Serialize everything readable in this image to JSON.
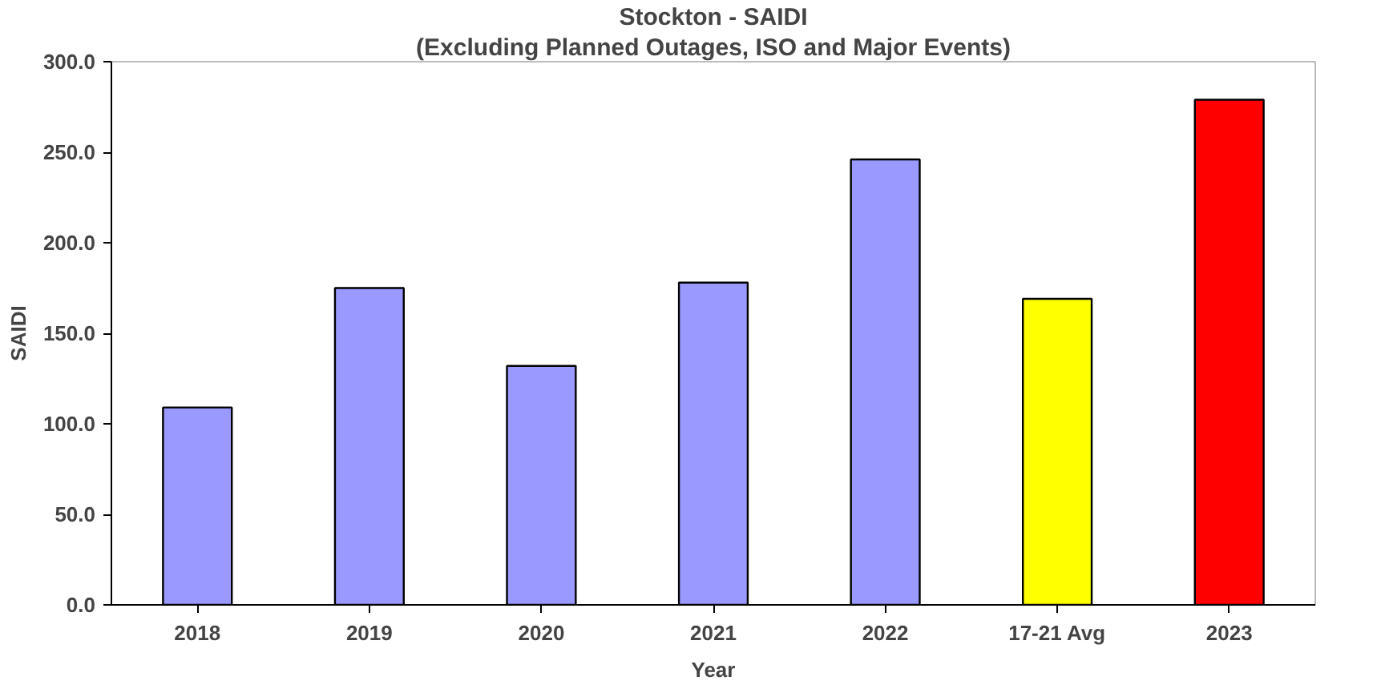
{
  "chart_data": {
    "type": "bar",
    "title": "Stockton - SAIDI",
    "subtitle": "(Excluding Planned Outages, ISO and Major Events)",
    "xlabel": "Year",
    "ylabel": "SAIDI",
    "categories": [
      "2018",
      "2019",
      "2020",
      "2021",
      "2022",
      "17-21 Avg",
      "2023"
    ],
    "values": [
      109,
      175,
      132,
      178,
      246,
      169,
      279
    ],
    "colors": [
      "#9999ff",
      "#9999ff",
      "#9999ff",
      "#9999ff",
      "#9999ff",
      "#ffff00",
      "#ff0000"
    ],
    "ylim": [
      0,
      300
    ],
    "yticks": [
      {
        "value": 0,
        "label": "0.0"
      },
      {
        "value": 50,
        "label": "50.0"
      },
      {
        "value": 100,
        "label": "100.0"
      },
      {
        "value": 150,
        "label": "150.0"
      },
      {
        "value": 200,
        "label": "200.0"
      },
      {
        "value": 250,
        "label": "250.0"
      },
      {
        "value": 300,
        "label": "300.0"
      }
    ],
    "grid": false
  }
}
